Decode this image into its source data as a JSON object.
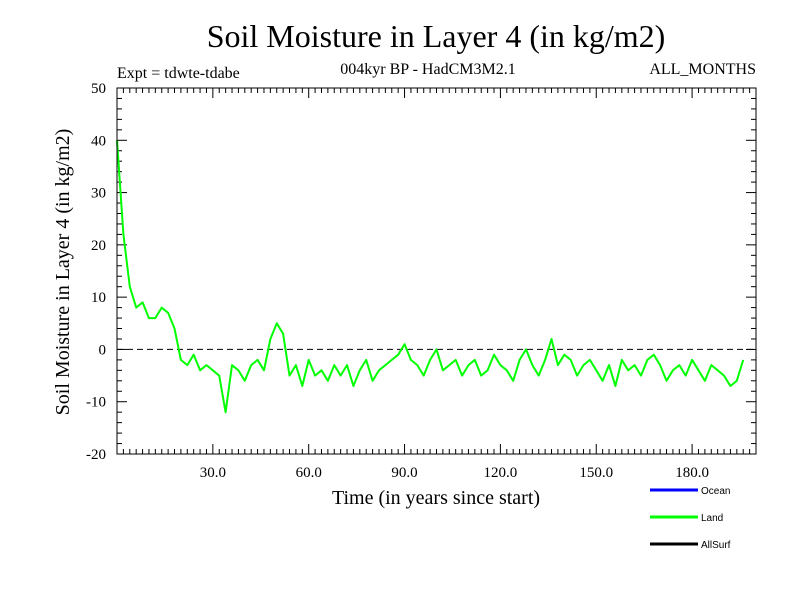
{
  "chart_data": {
    "type": "line",
    "title": "Soil Moisture in Layer 4 (in kg/m2)",
    "subtitle_left": "Expt = tdwte-tdabe",
    "subtitle_center": "004kyr BP - HadCM3M2.1",
    "subtitle_right": "ALL_MONTHS",
    "xlabel": "Time (in years since start)",
    "ylabel": "Soil Moisture in Layer 4 (in kg/m2)",
    "xlim": [
      0,
      200
    ],
    "ylim": [
      -20,
      50
    ],
    "x_ticks": [
      30,
      60,
      90,
      120,
      150,
      180
    ],
    "x_tick_labels": [
      "30.0",
      "60.0",
      "90.0",
      "120.0",
      "150.0",
      "180.0"
    ],
    "y_ticks": [
      -20,
      -10,
      0,
      10,
      20,
      30,
      40,
      50
    ],
    "y_tick_labels": [
      "-20",
      "-10",
      "0",
      "10",
      "20",
      "30",
      "40",
      "50"
    ],
    "reference_line": 0,
    "legend": [
      {
        "name": "Ocean",
        "color": "#0000ff"
      },
      {
        "name": "Land",
        "color": "#00ff00"
      },
      {
        "name": "AllSurf",
        "color": "#000000"
      }
    ],
    "series": [
      {
        "name": "Land",
        "color": "#00ff00",
        "x": [
          0,
          2,
          4,
          6,
          8,
          10,
          12,
          14,
          16,
          18,
          20,
          22,
          24,
          26,
          28,
          30,
          32,
          34,
          36,
          38,
          40,
          42,
          44,
          46,
          48,
          50,
          52,
          54,
          56,
          58,
          60,
          62,
          64,
          66,
          68,
          70,
          72,
          74,
          76,
          78,
          80,
          82,
          84,
          86,
          88,
          90,
          92,
          94,
          96,
          98,
          100,
          102,
          104,
          106,
          108,
          110,
          112,
          114,
          116,
          118,
          120,
          122,
          124,
          126,
          128,
          130,
          132,
          134,
          136,
          138,
          140,
          142,
          144,
          146,
          148,
          150,
          152,
          154,
          156,
          158,
          160,
          162,
          164,
          166,
          168,
          170,
          172,
          174,
          176,
          178,
          180,
          182,
          184,
          186,
          188,
          190,
          192,
          194,
          196
        ],
        "values": [
          40,
          22,
          12,
          8,
          9,
          6,
          6,
          8,
          7,
          4,
          -2,
          -3,
          -1,
          -4,
          -3,
          -4,
          -5,
          -12,
          -3,
          -4,
          -6,
          -3,
          -2,
          -4,
          2,
          5,
          3,
          -5,
          -3,
          -7,
          -2,
          -5,
          -4,
          -6,
          -3,
          -5,
          -3,
          -7,
          -4,
          -2,
          -6,
          -4,
          -3,
          -2,
          -1,
          1,
          -2,
          -3,
          -5,
          -2,
          0,
          -4,
          -3,
          -2,
          -5,
          -3,
          -2,
          -5,
          -4,
          -1,
          -3,
          -4,
          -6,
          -2,
          0,
          -3,
          -5,
          -2,
          2,
          -3,
          -1,
          -2,
          -5,
          -3,
          -2,
          -4,
          -6,
          -3,
          -7,
          -2,
          -4,
          -3,
          -5,
          -2,
          -1,
          -3,
          -6,
          -4,
          -3,
          -5,
          -2,
          -4,
          -6,
          -3,
          -4,
          -5,
          -7,
          -6,
          -2
        ]
      }
    ]
  }
}
